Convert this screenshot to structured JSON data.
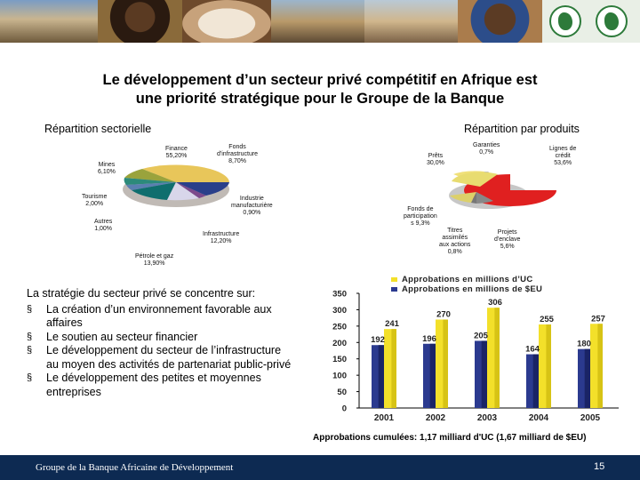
{
  "title": "Le développement d’un secteur privé compétitif en Afrique est une priorité stratégique pour le Groupe de la Banque",
  "title_line1": "Le développement d’un secteur privé compétitif en Afrique est",
  "title_line2": "une priorité stratégique pour le Groupe de la Banque",
  "pie_left": {
    "subtitle": "Répartition sectorielle",
    "slices": [
      {
        "name": "Finance",
        "value": "55,20%"
      },
      {
        "name": "Fonds d'infrastructure",
        "value": "8,70%"
      },
      {
        "name": "Industrie manufacturière",
        "value": "0,90%"
      },
      {
        "name": "Infrastructure",
        "value": "12,20%"
      },
      {
        "name": "Pétrole et gaz",
        "value": "13,90%"
      },
      {
        "name": "Autres",
        "value": "1,00%"
      },
      {
        "name": "Tourisme",
        "value": "2,00%"
      },
      {
        "name": "Mines",
        "value": "6,10%"
      }
    ],
    "labels": {
      "finance": [
        "Finance",
        "55,20%"
      ],
      "fonds": [
        "Fonds",
        "d'infrastructure",
        "8,70%"
      ],
      "industrie": [
        "Industrie",
        "manufacturière",
        "0,90%"
      ],
      "infrastructure": [
        "Infrastructure",
        "12,20%"
      ],
      "petrole": [
        "Pétrole et gaz",
        "13,90%"
      ],
      "autres": [
        "Autres",
        "1,00%"
      ],
      "tourisme": [
        "Tourisme",
        "2,00%"
      ],
      "mines": [
        "Mines",
        "6,10%"
      ]
    }
  },
  "pie_right": {
    "subtitle": "Répartition par produits",
    "slices": [
      {
        "name": "Lignes de crédit",
        "value": "53,6%"
      },
      {
        "name": "Prêts",
        "value": "30,0%"
      },
      {
        "name": "Garanties",
        "value": "0,7%"
      },
      {
        "name": "Fonds de participation",
        "value": "9,3%"
      },
      {
        "name": "Titres assimilés aux actions",
        "value": "0,8%"
      },
      {
        "name": "Projets d'enclave",
        "value": "5,6%"
      }
    ],
    "labels": {
      "lignes": [
        "Lignes de",
        "crédit",
        "53,6%"
      ],
      "prets": [
        "Prêts",
        "30,0%"
      ],
      "garanties": [
        "Garanties",
        "0,7%"
      ],
      "fonds": [
        "Fonds de",
        "participation",
        "s 9,3%"
      ],
      "titres": [
        "Titres",
        "assimilés",
        "aux actions",
        "0,8%"
      ],
      "projets": [
        "Projets",
        "d'enclave",
        "5,6%"
      ]
    }
  },
  "strategy": {
    "heading": "La stratégie du secteur privé se concentre sur:",
    "bullets": [
      [
        "La création d’un environnement favorable aux",
        "affaires"
      ],
      [
        "Le soutien au secteur financier"
      ],
      [
        "Le développement du secteur de l’infrastructure",
        "au moyen des activités de partenariat public-privé"
      ],
      [
        "Le développement des petites et moyennes",
        "entreprises"
      ]
    ]
  },
  "chart_data": {
    "type": "bar",
    "categories": [
      "2001",
      "2002",
      "2003",
      "2004",
      "2005"
    ],
    "series": [
      {
        "name": "Approbations en millions de $EU",
        "values": [
          192,
          196,
          205,
          164,
          180
        ]
      },
      {
        "name": "Approbations en millions d’UC",
        "values": [
          241,
          270,
          306,
          255,
          257
        ]
      }
    ],
    "ylim": [
      0,
      350
    ],
    "yticks": [
      "0",
      "50",
      "100",
      "150",
      "200",
      "250",
      "300",
      "350"
    ],
    "grid": false,
    "legend_position": "top",
    "colors": {
      "$EU": "#2b3a8f",
      "UC": "#f3e02a"
    }
  },
  "legend": {
    "uc": "Approbations en millions d’UC",
    "eu": "Approbations en millions de $EU"
  },
  "cumulative_note": "Approbations cumulées: 1,17 milliard d'UC (1,67 milliard de $EU)",
  "footer": {
    "organization": "Groupe de la Banque Africaine de Développement",
    "page": "15"
  }
}
